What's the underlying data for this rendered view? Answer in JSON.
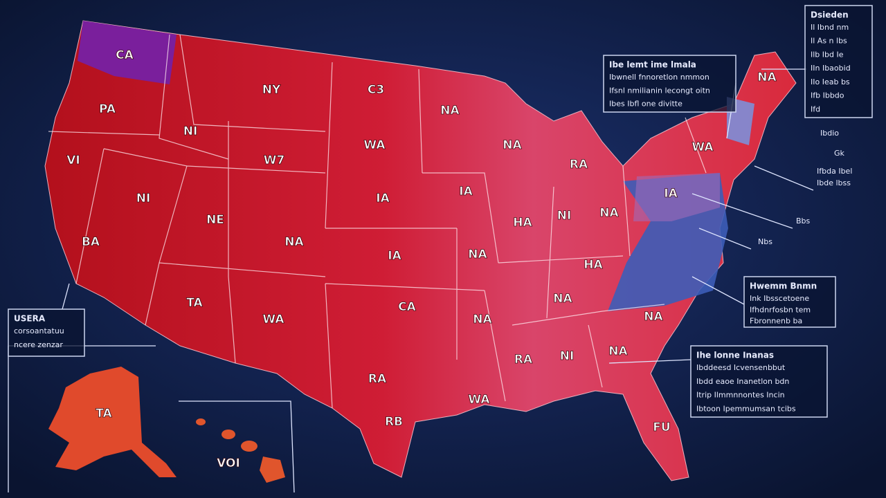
{
  "map": {
    "state_labels": [
      "CA",
      "PA",
      "NY",
      "C3",
      "NI",
      "WA",
      "W7",
      "VI",
      "NI",
      "IA",
      "NA",
      "NA",
      "RA",
      "IA",
      "HA",
      "NI",
      "NA",
      "NE",
      "BA",
      "NA",
      "IA",
      "NA",
      "HA",
      "TA",
      "WA",
      "CA",
      "NA",
      "NA",
      "NA",
      "WA",
      "NA",
      "RA",
      "NI",
      "NA",
      "RA",
      "WA",
      "RB",
      "FU",
      "IA",
      "TA",
      "VOI"
    ],
    "callouts": [
      {
        "title": "Ibe lemt ime lmala",
        "lines": [
          "Ibwnell fnnoretlon nmmon",
          "Ifsnl nmilianin lecongt oitn",
          "Ibes Ibfl one divitte"
        ]
      },
      {
        "title": "Dsieden",
        "lines": [
          "Il Ibnd nm",
          "Il As n lbs",
          "Ilb Ibd Ie",
          "IIn Ibaobid",
          "IIo Ieab bs",
          "Ifb Ibbdo",
          "Ifd"
        ]
      },
      {
        "title": "USERA",
        "lines": [
          "corsoantatuu",
          "ncere zenzar"
        ]
      },
      {
        "title": "Hwemm Bnmn",
        "lines": [
          "Ink Ibsscetoene",
          "Ifhdnrfosbn tem",
          "Fbronnenb ba"
        ]
      },
      {
        "title": "Ihe lonne Inanas",
        "lines": [
          "Ibddeesd Icvensenbbut",
          "Ibdd eaoe Inanetlon bdn",
          "Itrip Ilmmnnontes Incin",
          "Ibtoon Ipemmumsan tcibs"
        ]
      }
    ],
    "side_notes": [
      "Ibdio",
      "Gk",
      "Ifbda Ibel",
      "Ibde lbss",
      "Bbs",
      "Nbs"
    ]
  }
}
